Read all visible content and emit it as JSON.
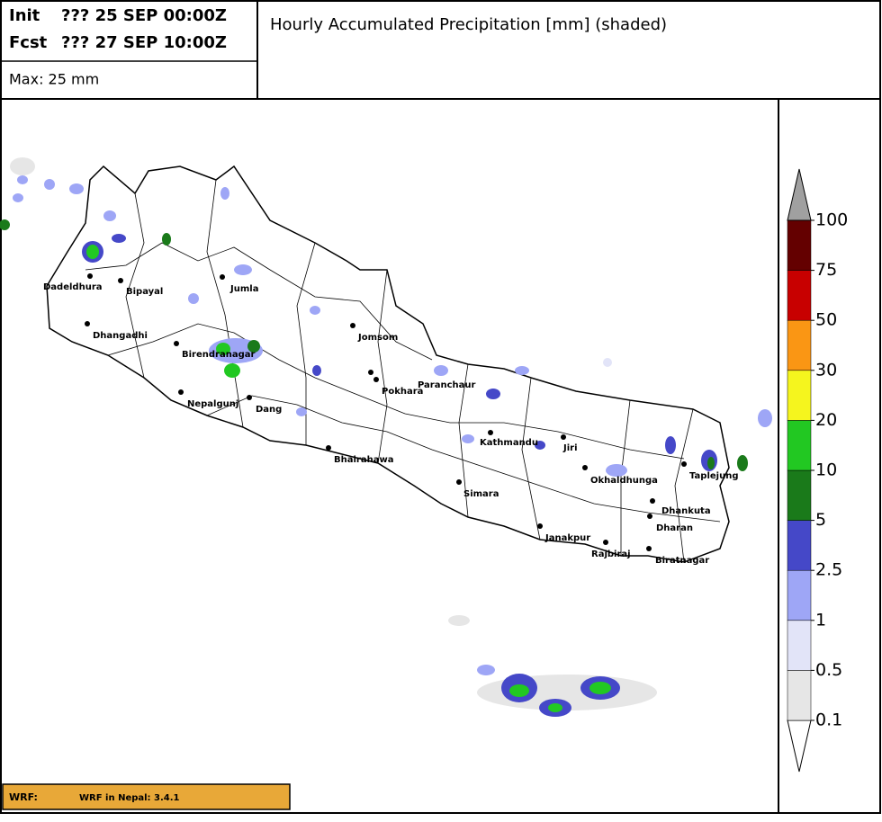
{
  "header": {
    "init_label": "Init",
    "init_value": "??? 25 SEP 00:00Z",
    "fcst_label": "Fcst",
    "fcst_value": "??? 27 SEP 10:00Z",
    "max": "Max: 25 mm",
    "title": "Hourly Accumulated Precipitation [mm] (shaded)"
  },
  "map": {
    "cities": [
      "Dadeldhura",
      "Bipayal",
      "Jumla",
      "Dhangadhi",
      "Birendranagar",
      "Jomsom",
      "Nepalgunj",
      "Dang",
      "Pokhara",
      "Paranchaur",
      "Bhairahawa",
      "Kathmandu",
      "Jiri",
      "Okhaldhunga",
      "Taplejung",
      "Simara",
      "Dhankuta",
      "Dharan",
      "Janakpur",
      "Rajbiraj",
      "Biratnagar"
    ]
  },
  "colorbar": {
    "levels": [
      0.1,
      0.5,
      1,
      2.5,
      5,
      10,
      20,
      30,
      50,
      75,
      100
    ],
    "colors": [
      "#ffffff",
      "#e6e6e6",
      "#e2e4f8",
      "#9ea6f6",
      "#4548c8",
      "#1a7a1a",
      "#22c822",
      "#f5f51e",
      "#fa9614",
      "#c80000",
      "#640000",
      "#a0a0a0"
    ]
  },
  "footer": {
    "model": "WRF:",
    "version": "WRF in Nepal: 3.4.1"
  }
}
